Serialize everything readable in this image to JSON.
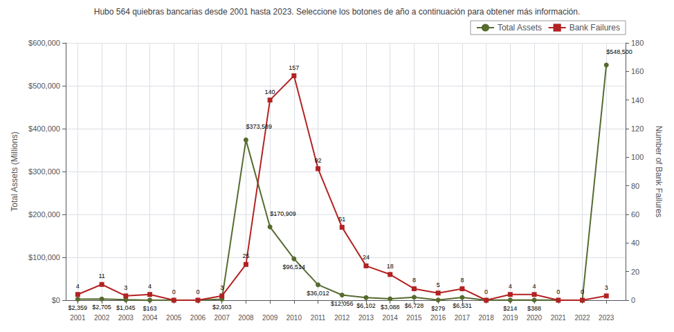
{
  "chart_data": {
    "type": "line",
    "title": "Hubo 564 quiebras bancarias desde 2001 hasta 2023. Seleccione los botones de año a continuación para obtener más información.",
    "x": [
      2001,
      2002,
      2003,
      2004,
      2005,
      2006,
      2007,
      2008,
      2009,
      2010,
      2011,
      2012,
      2013,
      2014,
      2015,
      2016,
      2017,
      2018,
      2019,
      2020,
      2021,
      2022,
      2023
    ],
    "xlim": [
      2000.5,
      2023.8
    ],
    "xticks": [
      2001,
      2002,
      2003,
      2004,
      2005,
      2006,
      2007,
      2008,
      2009,
      2010,
      2011,
      2012,
      2013,
      2014,
      2015,
      2016,
      2017,
      2018,
      2019,
      2020,
      2021,
      2022,
      2023
    ],
    "ylabel": "Total Assets (Millions)",
    "ylim": [
      0,
      600000
    ],
    "yticks": [
      {
        "value": 0,
        "label": "$0"
      },
      {
        "value": 100000,
        "label": "$100,000"
      },
      {
        "value": 200000,
        "label": "$200,000"
      },
      {
        "value": 300000,
        "label": "$300,000"
      },
      {
        "value": 400000,
        "label": "$400,000"
      },
      {
        "value": 500000,
        "label": "$500,000"
      },
      {
        "value": 600000,
        "label": "$600,000"
      }
    ],
    "y2label": "Number of Bank Failures",
    "y2lim": [
      0,
      180
    ],
    "y2ticks": [
      0,
      20,
      40,
      60,
      80,
      100,
      120,
      140,
      160,
      180
    ],
    "grid": true,
    "legend": "upper right",
    "data_labels": true,
    "series": [
      {
        "name": "Total Assets",
        "color": "#556B2F",
        "marker": "circle",
        "values": [
          2359,
          2705,
          1045,
          163,
          0,
          0,
          2603,
          373589,
          170909,
          96514,
          36012,
          12056,
          6102,
          3088,
          6728,
          279,
          6531,
          0,
          214,
          388,
          0,
          0,
          548500
        ],
        "value_labels": [
          "$2,359",
          "$2,705",
          "$1,045",
          "$163",
          null,
          null,
          "$2,603",
          "$373,589",
          "$170,909",
          "$96,514",
          "$36,012",
          "$12,056",
          "$6,102",
          "$3,088",
          "$6,728",
          "$279",
          "$6,531",
          null,
          "$214",
          "$388",
          null,
          null,
          "$548,500"
        ]
      },
      {
        "name": "Bank Failures",
        "color": "#B22222",
        "marker": "square",
        "axis": "y2",
        "values": [
          4,
          11,
          3,
          4,
          0,
          0,
          3,
          25,
          140,
          157,
          92,
          51,
          24,
          18,
          8,
          5,
          8,
          0,
          4,
          4,
          0,
          0,
          3
        ]
      }
    ]
  }
}
